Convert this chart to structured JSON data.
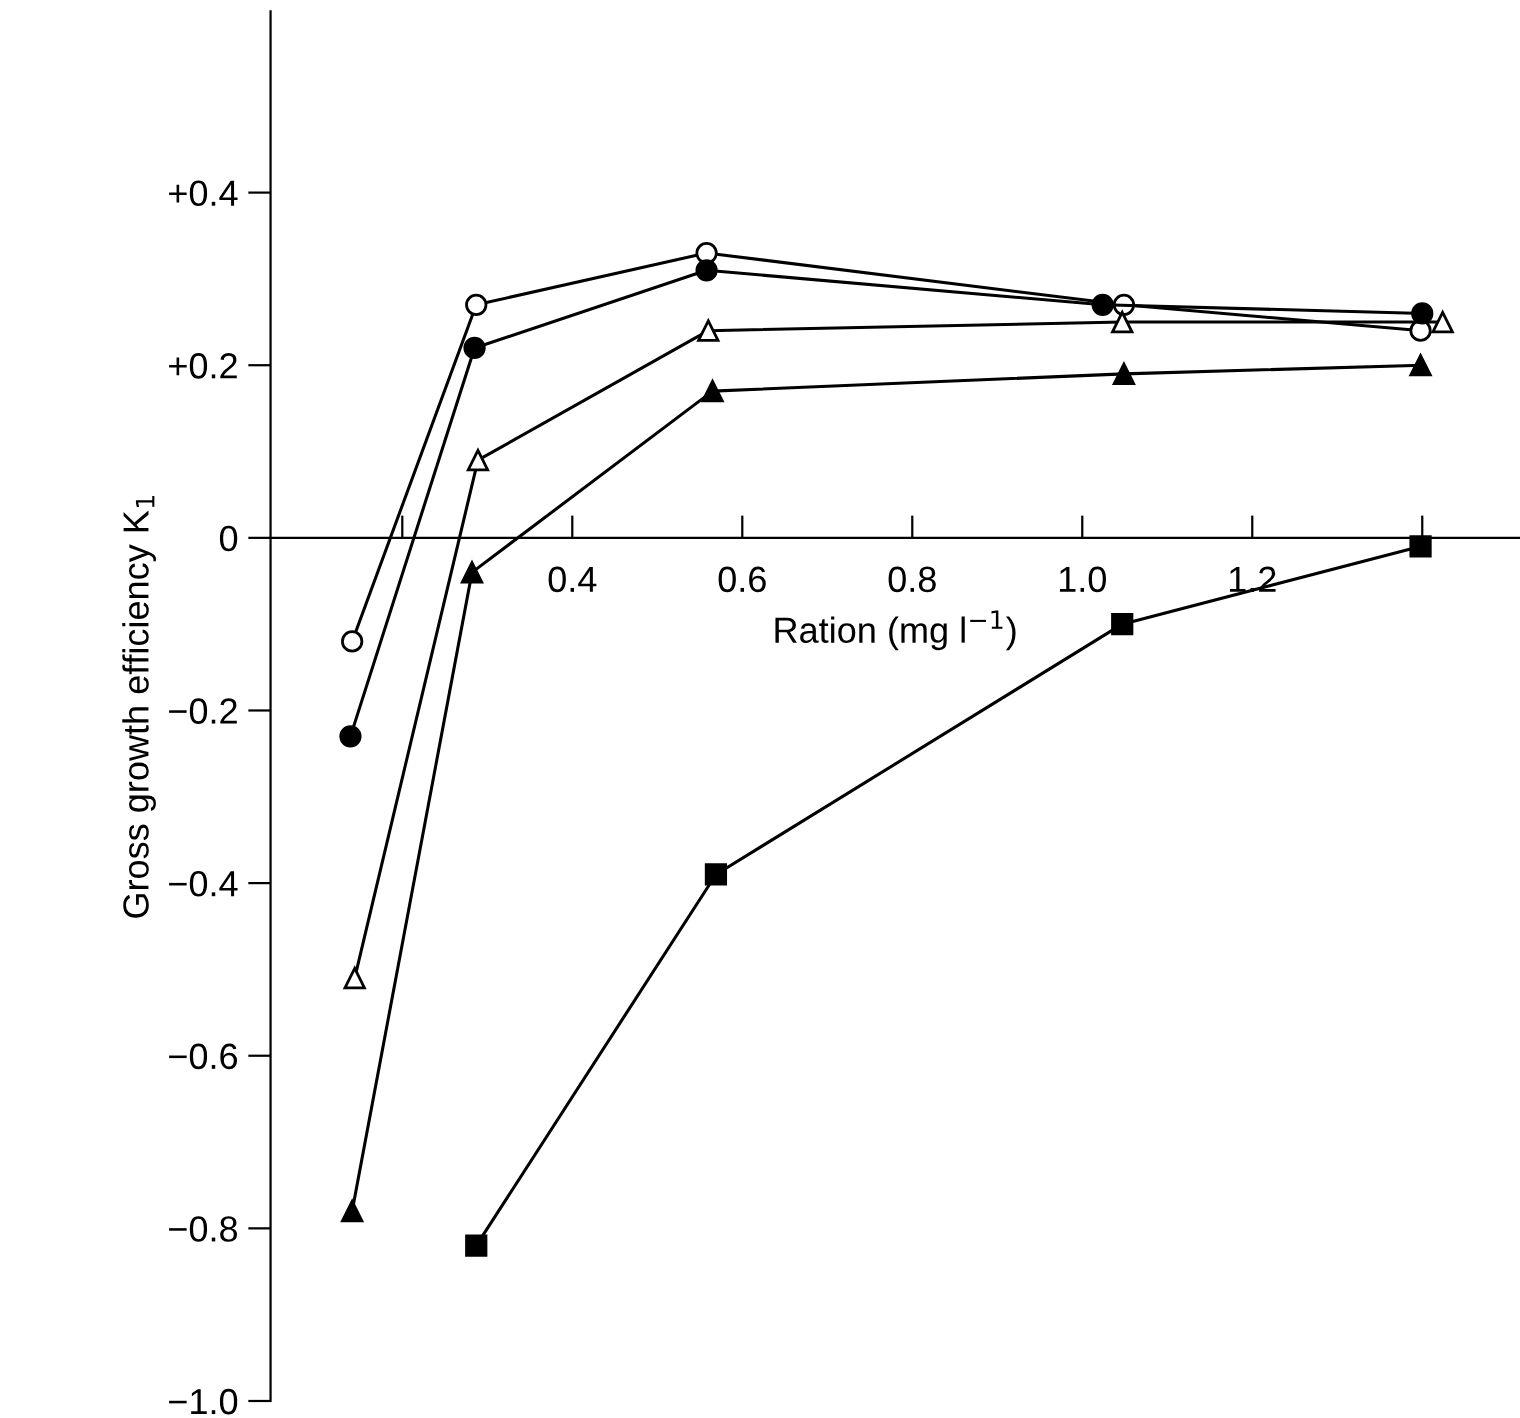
{
  "chart_data": {
    "type": "line",
    "xlabel": "Ration (mg l$^{−1}$)",
    "ylabel": "Gross growth efficiency K$_{1}$",
    "xlim": [
      0.045,
      1.515
    ],
    "ylim": [
      -1.0,
      0.61
    ],
    "xticks": [
      {
        "value": 0.2,
        "label": null
      },
      {
        "value": 0.4,
        "label": "0.4"
      },
      {
        "value": 0.6,
        "label": "0.6"
      },
      {
        "value": 0.8,
        "label": "0.8"
      },
      {
        "value": 1.0,
        "label": "1.0"
      },
      {
        "value": 1.2,
        "label": "1.2"
      },
      {
        "value": 1.4,
        "label": null
      }
    ],
    "yticks": [
      {
        "value": 0.4,
        "label": "+0.4"
      },
      {
        "value": 0.2,
        "label": "+0.2"
      },
      0,
      {
        "value": -0.2,
        "label": "−0.2"
      },
      {
        "value": -0.4,
        "label": "−0.4"
      },
      {
        "value": -0.6,
        "label": "−0.6"
      },
      {
        "value": -0.8,
        "label": "−0.8"
      },
      {
        "value": -1.0,
        "label": "−1.0"
      }
    ],
    "grid": false,
    "legend": false,
    "series": [
      {
        "marker": "circle",
        "color": "#ffffff",
        "x": [
          0.141,
          0.287,
          0.558,
          1.049,
          1.398
        ],
        "values": [
          -0.12,
          0.27,
          0.33,
          0.27,
          0.24
        ]
      },
      {
        "marker": "circle",
        "color": "#000000",
        "x": [
          0.139,
          0.285,
          0.558,
          1.024,
          1.4
        ],
        "values": [
          -0.23,
          0.22,
          0.31,
          0.27,
          0.26
        ]
      },
      {
        "marker": "triangle",
        "color": "#ffffff",
        "x": [
          0.144,
          0.289,
          0.56,
          1.047,
          1.424
        ],
        "values": [
          -0.51,
          0.09,
          0.24,
          0.25,
          0.25
        ]
      },
      {
        "marker": "triangle",
        "color": "#000000",
        "x": [
          0.141,
          0.282,
          0.565,
          1.049,
          1.398
        ],
        "values": [
          -0.78,
          -0.04,
          0.17,
          0.19,
          0.2
        ]
      },
      {
        "marker": "square",
        "color": "#000000",
        "x": [
          0.287,
          0.569,
          1.047,
          1.398
        ],
        "values": [
          -0.82,
          -0.39,
          -0.1,
          -0.01
        ]
      }
    ]
  }
}
